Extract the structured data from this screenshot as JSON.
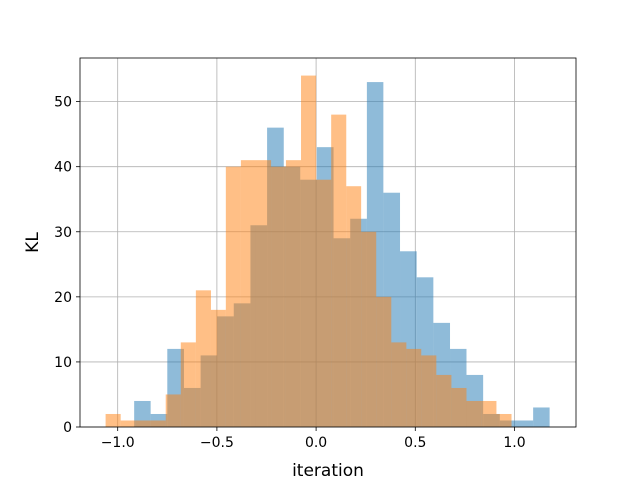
{
  "chart_data": {
    "type": "bar",
    "title": "",
    "xlabel": "iteration",
    "ylabel": "KL",
    "xlim": [
      -1.19,
      1.31
    ],
    "ylim": [
      0,
      56.7
    ],
    "xticks": [
      -1.0,
      -0.5,
      0.0,
      0.5,
      1.0
    ],
    "xtick_labels": [
      "−1.0",
      "−0.5",
      "0.0",
      "0.5",
      "1.0"
    ],
    "yticks": [
      0,
      10,
      20,
      30,
      40,
      50
    ],
    "ytick_labels": [
      "0",
      "10",
      "20",
      "30",
      "40",
      "50"
    ],
    "grid": true,
    "legend": "none",
    "series": [
      {
        "color": "#1f77b4",
        "opacity": 0.5,
        "bins": [
          {
            "x0": -0.917,
            "x1": -0.834,
            "y": 4
          },
          {
            "x0": -0.834,
            "x1": -0.75,
            "y": 2
          },
          {
            "x0": -0.75,
            "x1": -0.666,
            "y": 12
          },
          {
            "x0": -0.666,
            "x1": -0.582,
            "y": 6
          },
          {
            "x0": -0.582,
            "x1": -0.499,
            "y": 11
          },
          {
            "x0": -0.499,
            "x1": -0.415,
            "y": 17
          },
          {
            "x0": -0.415,
            "x1": -0.331,
            "y": 19
          },
          {
            "x0": -0.331,
            "x1": -0.247,
            "y": 31
          },
          {
            "x0": -0.247,
            "x1": -0.163,
            "y": 46
          },
          {
            "x0": -0.163,
            "x1": -0.08,
            "y": 40
          },
          {
            "x0": -0.08,
            "x1": 0.004,
            "y": 38
          },
          {
            "x0": 0.004,
            "x1": 0.088,
            "y": 43
          },
          {
            "x0": 0.088,
            "x1": 0.172,
            "y": 29
          },
          {
            "x0": 0.172,
            "x1": 0.256,
            "y": 32
          },
          {
            "x0": 0.256,
            "x1": 0.339,
            "y": 53
          },
          {
            "x0": 0.339,
            "x1": 0.423,
            "y": 36
          },
          {
            "x0": 0.423,
            "x1": 0.507,
            "y": 27
          },
          {
            "x0": 0.507,
            "x1": 0.591,
            "y": 23
          },
          {
            "x0": 0.591,
            "x1": 0.675,
            "y": 16
          },
          {
            "x0": 0.675,
            "x1": 0.758,
            "y": 12
          },
          {
            "x0": 0.758,
            "x1": 0.842,
            "y": 8
          },
          {
            "x0": 0.842,
            "x1": 0.926,
            "y": 2
          },
          {
            "x0": 0.926,
            "x1": 1.01,
            "y": 1
          },
          {
            "x0": 1.01,
            "x1": 1.094,
            "y": 1
          },
          {
            "x0": 1.094,
            "x1": 1.177,
            "y": 3
          }
        ]
      },
      {
        "color": "#ff7f0e",
        "opacity": 0.5,
        "bins": [
          {
            "x0": -1.061,
            "x1": -0.985,
            "y": 2
          },
          {
            "x0": -0.985,
            "x1": -0.909,
            "y": 1
          },
          {
            "x0": -0.909,
            "x1": -0.833,
            "y": 1
          },
          {
            "x0": -0.833,
            "x1": -0.758,
            "y": 1
          },
          {
            "x0": -0.758,
            "x1": -0.682,
            "y": 5
          },
          {
            "x0": -0.682,
            "x1": -0.606,
            "y": 13
          },
          {
            "x0": -0.606,
            "x1": -0.53,
            "y": 21
          },
          {
            "x0": -0.53,
            "x1": -0.455,
            "y": 18
          },
          {
            "x0": -0.455,
            "x1": -0.379,
            "y": 40
          },
          {
            "x0": -0.379,
            "x1": -0.303,
            "y": 41
          },
          {
            "x0": -0.303,
            "x1": -0.227,
            "y": 41
          },
          {
            "x0": -0.227,
            "x1": -0.152,
            "y": 40
          },
          {
            "x0": -0.152,
            "x1": -0.076,
            "y": 41
          },
          {
            "x0": -0.076,
            "x1": 0.0,
            "y": 54
          },
          {
            "x0": 0.0,
            "x1": 0.076,
            "y": 38
          },
          {
            "x0": 0.076,
            "x1": 0.152,
            "y": 48
          },
          {
            "x0": 0.152,
            "x1": 0.227,
            "y": 37
          },
          {
            "x0": 0.227,
            "x1": 0.303,
            "y": 30
          },
          {
            "x0": 0.303,
            "x1": 0.379,
            "y": 20
          },
          {
            "x0": 0.379,
            "x1": 0.455,
            "y": 13
          },
          {
            "x0": 0.455,
            "x1": 0.53,
            "y": 12
          },
          {
            "x0": 0.53,
            "x1": 0.606,
            "y": 11
          },
          {
            "x0": 0.606,
            "x1": 0.682,
            "y": 8
          },
          {
            "x0": 0.682,
            "x1": 0.758,
            "y": 6
          },
          {
            "x0": 0.758,
            "x1": 0.833,
            "y": 4
          },
          {
            "x0": 0.833,
            "x1": 0.909,
            "y": 4
          },
          {
            "x0": 0.909,
            "x1": 0.985,
            "y": 2
          }
        ]
      }
    ],
    "colors": {
      "grid": "#b0b0b0",
      "frame": "#000000"
    }
  }
}
